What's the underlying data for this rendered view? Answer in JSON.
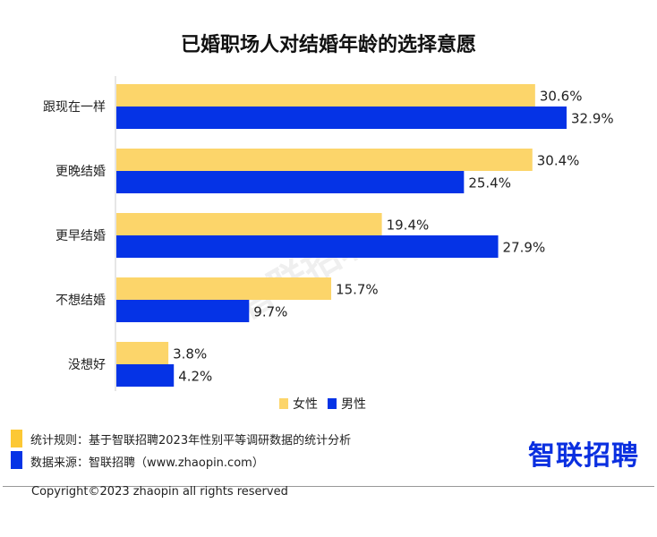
{
  "chart_data": {
    "type": "bar",
    "orientation": "horizontal",
    "title": "已婚职场人对结婚年龄的选择意愿",
    "categories": [
      "跟现在一样",
      "更晚结婚",
      "更早结婚",
      "不想结婚",
      "没想好"
    ],
    "series": [
      {
        "name": "女性",
        "color": "#FCD56A",
        "values": [
          30.6,
          30.4,
          19.4,
          15.7,
          3.8
        ],
        "labels": [
          "30.6%",
          "30.4%",
          "19.4%",
          "15.7%",
          "3.8%"
        ]
      },
      {
        "name": "男性",
        "color": "#0533E6",
        "values": [
          32.9,
          25.4,
          27.9,
          9.7,
          4.2
        ],
        "labels": [
          "32.9%",
          "25.4%",
          "27.9%",
          "9.7%",
          "4.2%"
        ]
      }
    ],
    "xlim": [
      0,
      35
    ],
    "grid": false,
    "legend": "bottom-right"
  },
  "footer": {
    "rule": "统计规则：基于智联招聘2023年性别平等调研数据的统计分析",
    "source": "数据来源：智联招聘（www.zhaopin.com）",
    "logo": "智联招聘",
    "copyright": "Copyright©2023 zhaopin all rights reserved",
    "watermark": "智联招聘",
    "rule_color": "#FCC834",
    "source_color": "#0533E6"
  }
}
